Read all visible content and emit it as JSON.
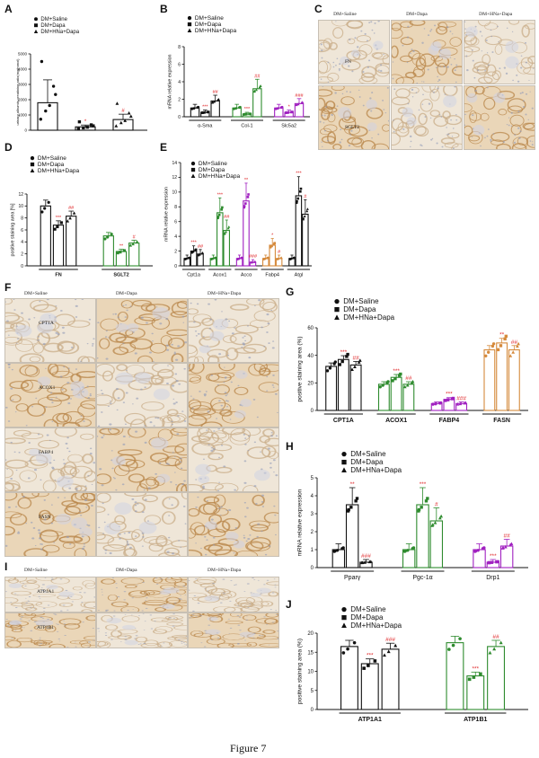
{
  "figure_caption": "Figure 7",
  "colors": {
    "black": "#111111",
    "green": "#2e8b2e",
    "magenta": "#a020c0",
    "orange": "#d58a3c",
    "star": "#e0282a"
  },
  "panels": {
    "A": {
      "letter": "A",
      "legend": [
        "DM+Saline",
        "DM+Dapa",
        "DM+HNa+Dapa"
      ],
      "ylabel": "urinary albumin-creatinine ratio(mg/mmol)",
      "yticks": [
        "0",
        "1000",
        "2000",
        "3000",
        "4000",
        "5000"
      ],
      "annotations": [
        "*",
        "#"
      ]
    },
    "B": {
      "letter": "B",
      "legend": [
        "DM+Saline",
        "DM+Dapa",
        "DM+HNa+Dapa"
      ],
      "ylabel": "mRNA relative expression",
      "yticks": [
        "0",
        "2",
        "4",
        "6",
        "8"
      ],
      "groups": [
        "α-Sma",
        "Col-1",
        "Slc5a2"
      ],
      "annotations": [
        "***",
        "##",
        "***",
        "##",
        "*",
        "###"
      ]
    },
    "C": {
      "letter": "C",
      "columns": [
        "DM+Saline",
        "DM+Dapa",
        "DM+HNa+Dapa"
      ],
      "rows": [
        "FN",
        "SGLT2"
      ]
    },
    "D": {
      "letter": "D",
      "legend": [
        "DM+Saline",
        "DM+Dapa",
        "DM+HNa+Dapa"
      ],
      "ylabel": "positive staining area [%]",
      "yticks": [
        "0",
        "2",
        "4",
        "6",
        "8",
        "10",
        "12"
      ],
      "groups": [
        "FN",
        "SGLT2"
      ],
      "annotations": [
        "***",
        "##",
        "**",
        "#"
      ]
    },
    "E": {
      "letter": "E",
      "legend": [
        "DM+Saline",
        "DM+Dapa",
        "DM+HNa+Dapa"
      ],
      "ylabel": "mRNA relative expression",
      "yticks": [
        "0",
        "2",
        "4",
        "6",
        "8",
        "10",
        "12",
        "14"
      ],
      "groups": [
        "Cpt1a",
        "Acox1",
        "Accα",
        "Fabp4",
        "Atgl"
      ],
      "annotations": [
        "***",
        "##",
        "***",
        "##",
        "**",
        "###",
        "*",
        "#",
        "***",
        "#"
      ]
    },
    "F": {
      "letter": "F",
      "columns": [
        "DM+Saline",
        "DM+Dapa",
        "DM+HNa+Dapa"
      ],
      "rows": [
        "CPT1A",
        "ACOX1",
        "FABP4",
        "FASN"
      ]
    },
    "G": {
      "letter": "G",
      "legend": [
        "DM+Saline",
        "DM+Dapa",
        "DM+HNa+Dapa"
      ],
      "ylabel": "positive staining area (%)",
      "yticks": [
        "0",
        "20",
        "40",
        "60"
      ],
      "groups": [
        "CPT1A",
        "ACOX1",
        "FABP4",
        "FASN"
      ],
      "annotations": [
        "***",
        "##",
        "***",
        "##",
        "***",
        "###",
        "**",
        "##"
      ]
    },
    "H": {
      "letter": "H",
      "legend": [
        "DM+Saline",
        "DM+Dapa",
        "DM+HNa+Dapa"
      ],
      "ylabel": "mRNA relative expression",
      "yticks": [
        "0",
        "1",
        "2",
        "3",
        "4",
        "5"
      ],
      "groups": [
        "Pparγ",
        "Pgc-1α",
        "Drp1"
      ],
      "annotations": [
        "**",
        "###",
        "***",
        "#",
        "***",
        "##"
      ]
    },
    "I": {
      "letter": "I",
      "columns": [
        "DM+Saline",
        "DM+Dapa",
        "DM+HNa+Dapa"
      ],
      "rows": [
        "ATP1A1",
        "ATP1B1"
      ]
    },
    "J": {
      "letter": "J",
      "legend": [
        "DM+Saline",
        "DM+Dapa",
        "DM+HNa+Dapa"
      ],
      "ylabel": "positive staining area (%)",
      "yticks": [
        "0",
        "5",
        "10",
        "15",
        "20"
      ],
      "groups": [
        "ATP1A1",
        "ATP1B1"
      ],
      "annotations": [
        "***",
        "###",
        "***",
        "##"
      ]
    }
  },
  "chart_data": [
    {
      "panel": "A",
      "type": "bar",
      "ylabel": "urinary albumin-creatinine ratio(mg/mmol)",
      "ylim": [
        0,
        5000
      ],
      "categories": [
        "DM+Saline",
        "DM+Dapa",
        "DM+HNa+Dapa"
      ],
      "values": [
        1800,
        220,
        700
      ],
      "errors": [
        1500,
        120,
        350
      ],
      "colors": [
        "#111111",
        "#111111",
        "#111111"
      ]
    },
    {
      "panel": "B",
      "type": "bar",
      "ylabel": "mRNA relative expression",
      "ylim": [
        0,
        8
      ],
      "categories": [
        "α-Sma",
        "Col-1",
        "Slc5a2"
      ],
      "series": [
        {
          "name": "DM+Saline",
          "values": [
            1.0,
            1.0,
            1.0
          ]
        },
        {
          "name": "DM+Dapa",
          "values": [
            0.5,
            0.3,
            0.5
          ]
        },
        {
          "name": "DM+HNa+Dapa",
          "values": [
            1.8,
            3.2,
            1.5
          ]
        }
      ],
      "group_colors": [
        "#111111",
        "#2e8b2e",
        "#a020c0"
      ]
    },
    {
      "panel": "D",
      "type": "bar",
      "ylabel": "positive staining area [%]",
      "ylim": [
        0,
        12
      ],
      "categories": [
        "FN",
        "SGLT2"
      ],
      "series": [
        {
          "name": "DM+Saline",
          "values": [
            10.0,
            5.0
          ]
        },
        {
          "name": "DM+Dapa",
          "values": [
            6.8,
            2.4
          ]
        },
        {
          "name": "DM+HNa+Dapa",
          "values": [
            8.3,
            3.8
          ]
        }
      ],
      "group_colors": [
        "#111111",
        "#2e8b2e"
      ]
    },
    {
      "panel": "E",
      "type": "bar",
      "ylabel": "mRNA relative expression",
      "ylim": [
        0,
        14
      ],
      "categories": [
        "Cpt1a",
        "Acox1",
        "Accα",
        "Fabp4",
        "Atgl"
      ],
      "series": [
        {
          "name": "DM+Saline",
          "values": [
            1.0,
            1.0,
            1.0,
            1.0,
            1.0
          ]
        },
        {
          "name": "DM+Dapa",
          "values": [
            2.0,
            7.2,
            8.8,
            2.8,
            9.5
          ]
        },
        {
          "name": "DM+HNa+Dapa",
          "values": [
            1.6,
            4.8,
            0.5,
            1.0,
            7.0
          ]
        }
      ],
      "group_colors": [
        "#111111",
        "#2e8b2e",
        "#a020c0",
        "#d58a3c",
        "#111111"
      ]
    },
    {
      "panel": "G",
      "type": "bar",
      "ylabel": "positive staining area (%)",
      "ylim": [
        0,
        60
      ],
      "categories": [
        "CPT1A",
        "ACOX1",
        "FABP4",
        "FASN"
      ],
      "series": [
        {
          "name": "DM+Saline",
          "values": [
            32,
            19,
            5,
            44
          ]
        },
        {
          "name": "DM+Dapa",
          "values": [
            37,
            24,
            8,
            49
          ]
        },
        {
          "name": "DM+HNa+Dapa",
          "values": [
            33,
            19,
            5,
            44
          ]
        }
      ],
      "group_colors": [
        "#111111",
        "#2e8b2e",
        "#a020c0",
        "#d58a3c"
      ]
    },
    {
      "panel": "H",
      "type": "bar",
      "ylabel": "mRNA relative expression",
      "ylim": [
        0,
        5
      ],
      "categories": [
        "Pparγ",
        "Pgc-1α",
        "Drp1"
      ],
      "series": [
        {
          "name": "DM+Saline",
          "values": [
            1.0,
            1.0,
            1.0
          ]
        },
        {
          "name": "DM+Dapa",
          "values": [
            3.5,
            3.5,
            0.3
          ]
        },
        {
          "name": "DM+HNa+Dapa",
          "values": [
            0.3,
            2.6,
            1.2
          ]
        }
      ],
      "group_colors": [
        "#111111",
        "#2e8b2e",
        "#a020c0"
      ]
    },
    {
      "panel": "J",
      "type": "bar",
      "ylabel": "positive staining area (%)",
      "ylim": [
        0,
        20
      ],
      "categories": [
        "ATP1A1",
        "ATP1B1"
      ],
      "series": [
        {
          "name": "DM+Saline",
          "values": [
            16.5,
            17.5
          ]
        },
        {
          "name": "DM+Dapa",
          "values": [
            12.0,
            8.8
          ]
        },
        {
          "name": "DM+HNa+Dapa",
          "values": [
            15.8,
            16.5
          ]
        }
      ],
      "group_colors": [
        "#111111",
        "#2e8b2e"
      ]
    }
  ]
}
